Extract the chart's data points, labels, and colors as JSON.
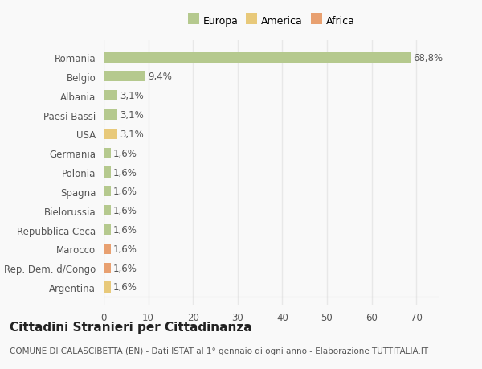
{
  "title": "Cittadini Stranieri per Cittadinanza",
  "subtitle": "COMUNE DI CALASCIBETTA (EN) - Dati ISTAT al 1° gennaio di ogni anno - Elaborazione TUTTITALIA.IT",
  "categories": [
    "Romania",
    "Belgio",
    "Albania",
    "Paesi Bassi",
    "USA",
    "Germania",
    "Polonia",
    "Spagna",
    "Bielorussia",
    "Repubblica Ceca",
    "Marocco",
    "Rep. Dem. d/Congo",
    "Argentina"
  ],
  "values": [
    68.8,
    9.4,
    3.1,
    3.1,
    3.1,
    1.6,
    1.6,
    1.6,
    1.6,
    1.6,
    1.6,
    1.6,
    1.6
  ],
  "colors": [
    "#b5c98e",
    "#b5c98e",
    "#b5c98e",
    "#b5c98e",
    "#e8c97a",
    "#b5c98e",
    "#b5c98e",
    "#b5c98e",
    "#b5c98e",
    "#b5c98e",
    "#e8a070",
    "#e8a070",
    "#e8c97a"
  ],
  "labels": [
    "68,8%",
    "9,4%",
    "3,1%",
    "3,1%",
    "3,1%",
    "1,6%",
    "1,6%",
    "1,6%",
    "1,6%",
    "1,6%",
    "1,6%",
    "1,6%",
    "1,6%"
  ],
  "legend_labels": [
    "Europa",
    "America",
    "Africa"
  ],
  "legend_colors": [
    "#b5c98e",
    "#e8c97a",
    "#e8a070"
  ],
  "xlim": [
    0,
    75
  ],
  "xticks": [
    0,
    10,
    20,
    30,
    40,
    50,
    60,
    70
  ],
  "background_color": "#f9f9f9",
  "grid_color": "#e8e8e8",
  "bar_height": 0.55,
  "label_fontsize": 8.5,
  "ytick_fontsize": 8.5,
  "xtick_fontsize": 8.5,
  "title_fontsize": 11,
  "subtitle_fontsize": 7.5,
  "text_color": "#555555",
  "title_color": "#222222"
}
